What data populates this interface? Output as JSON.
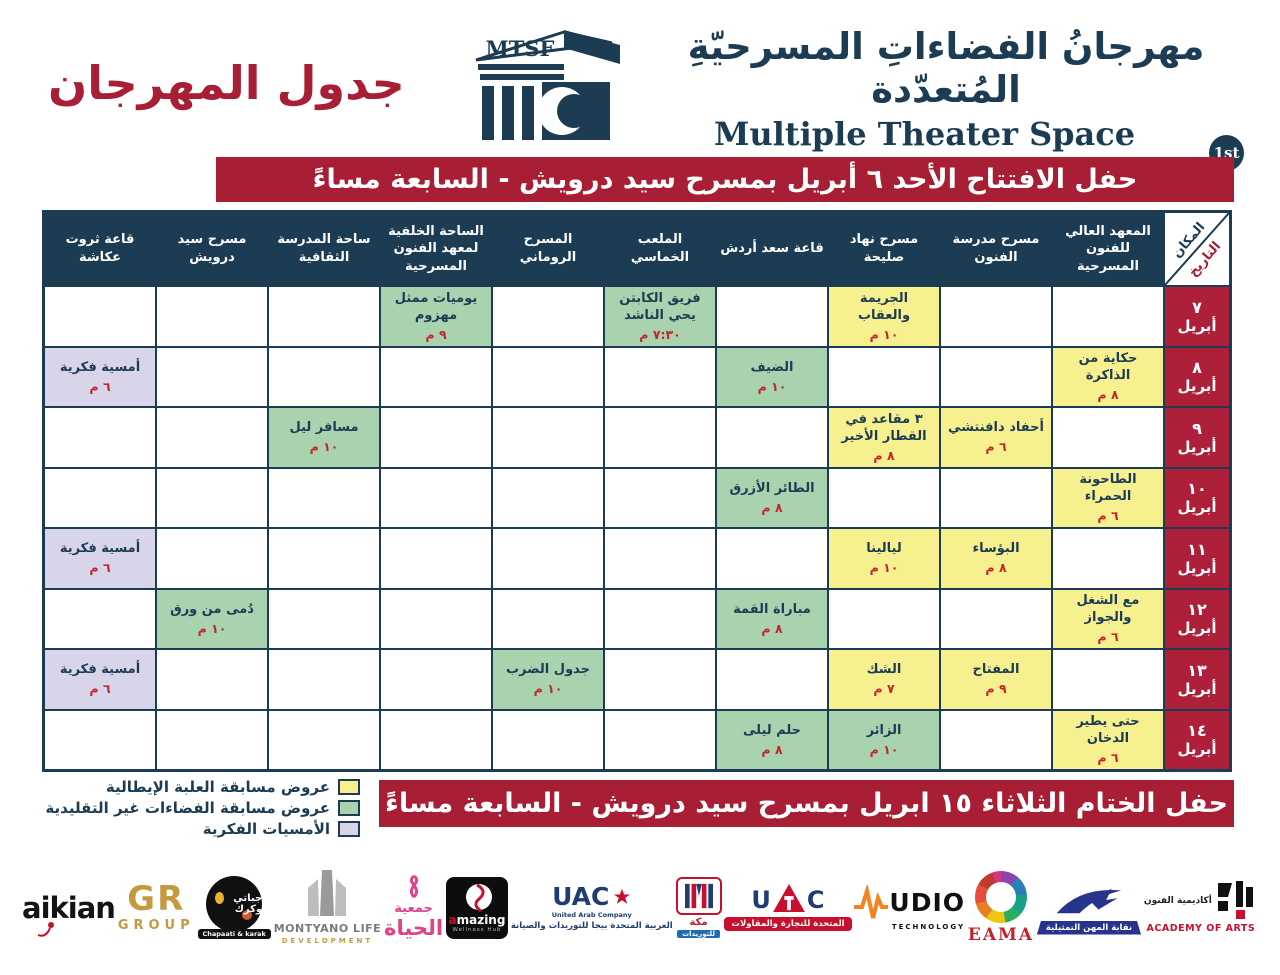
{
  "page_title": "جدول المهرجان",
  "logo": {
    "acronym": "MTSF",
    "festival_name_ar": "مهرجانُ الفضاءاتِ المسرحيّةِ المُتعدّدة",
    "festival_name_en": "Multiple Theater Space Festival",
    "edition": "1st"
  },
  "banners": {
    "opening": "حفل الافتتاح الأحد ٦ أبريل بمسرح سيد درويش - السابعة مساءً",
    "closing": "حفل الختام الثلاثاء ١٥ ابريل بمسرح سيد درويش - السابعة مساءً"
  },
  "colors": {
    "crimson": "#A71E35",
    "navy": "#1C3C54",
    "italian": "#F7F08F",
    "nontrad": "#A9D3AF",
    "evening": "#D8D4E9"
  },
  "schedule": {
    "corner": {
      "place": "المكان",
      "date": "التاريخ"
    },
    "venues": [
      "المعهد العالي للفنون المسرحية",
      "مسرح مدرسة الفنون",
      "مسرح نهاد صليحة",
      "قاعة سعد أردش",
      "الملعب الخماسي",
      "المسرح الروماني",
      "الساحة الخلفية لمعهد الفنون المسرحية",
      "ساحة المدرسة الثقافية",
      "مسرح سيد درويش",
      "قاعة ثروت عكاشة"
    ],
    "rows": [
      {
        "date_day": "٧",
        "date_month": "أبريل",
        "cells": [
          null,
          null,
          {
            "title": "الجريمة والعقاب",
            "time": "١٠ م",
            "type": "italian"
          },
          null,
          {
            "title": "فريق الكابتن يحي الناشد",
            "time": "٧:٣٠ م",
            "type": "nontrad"
          },
          null,
          {
            "title": "يوميات ممثل مهزوم",
            "time": "٩ م",
            "type": "nontrad"
          },
          null,
          null,
          null
        ]
      },
      {
        "date_day": "٨",
        "date_month": "أبريل",
        "cells": [
          {
            "title": "حكاية من الذاكرة",
            "time": "٨ م",
            "type": "italian"
          },
          null,
          null,
          {
            "title": "الضيف",
            "time": "١٠ م",
            "type": "nontrad"
          },
          null,
          null,
          null,
          null,
          null,
          {
            "title": "أمسية فكرية",
            "time": "٦ م",
            "type": "evening"
          }
        ]
      },
      {
        "date_day": "٩",
        "date_month": "أبريل",
        "cells": [
          null,
          {
            "title": "أحفاد دافنتشي",
            "time": "٦ م",
            "type": "italian"
          },
          {
            "title": "٣ مقاعد في القطار الأخير",
            "time": "٨ م",
            "type": "italian"
          },
          null,
          null,
          null,
          null,
          {
            "title": "مسافر ليل",
            "time": "١٠ م",
            "type": "nontrad"
          },
          null,
          null
        ]
      },
      {
        "date_day": "١٠",
        "date_month": "أبريل",
        "cells": [
          {
            "title": "الطاحونة الحمراء",
            "time": "٦ م",
            "type": "italian"
          },
          null,
          null,
          {
            "title": "الطائر الأزرق",
            "time": "٨ م",
            "type": "nontrad"
          },
          null,
          null,
          null,
          null,
          null,
          null
        ]
      },
      {
        "date_day": "١١",
        "date_month": "أبريل",
        "cells": [
          null,
          {
            "title": "البؤساء",
            "time": "٨ م",
            "type": "italian"
          },
          {
            "title": "ليالينا",
            "time": "١٠ م",
            "type": "italian"
          },
          null,
          null,
          null,
          null,
          null,
          null,
          {
            "title": "أمسية فكرية",
            "time": "٦ م",
            "type": "evening"
          }
        ]
      },
      {
        "date_day": "١٢",
        "date_month": "أبريل",
        "cells": [
          {
            "title": "مع الشغل والجواز",
            "time": "٦ م",
            "type": "italian"
          },
          null,
          null,
          {
            "title": "مباراة القمة",
            "time": "٨ م",
            "type": "nontrad"
          },
          null,
          null,
          null,
          null,
          {
            "title": "دُمى من ورق",
            "time": "١٠ م",
            "type": "nontrad"
          },
          null
        ]
      },
      {
        "date_day": "١٣",
        "date_month": "أبريل",
        "cells": [
          null,
          {
            "title": "المفتاح",
            "time": "٩ م",
            "type": "italian"
          },
          {
            "title": "الشك",
            "time": "٧ م",
            "type": "italian"
          },
          null,
          null,
          {
            "title": "جدول الضرب",
            "time": "١٠ م",
            "type": "nontrad"
          },
          null,
          null,
          null,
          {
            "title": "أمسية فكرية",
            "time": "٦ م",
            "type": "evening"
          }
        ]
      },
      {
        "date_day": "١٤",
        "date_month": "أبريل",
        "cells": [
          {
            "title": "حتى يطير الدخان",
            "time": "٦ م",
            "type": "italian"
          },
          null,
          {
            "title": "الزائر",
            "time": "١٠ م",
            "type": "nontrad"
          },
          {
            "title": "حلم ليلى",
            "time": "٨ م",
            "type": "nontrad"
          },
          null,
          null,
          null,
          null,
          null,
          null
        ]
      }
    ]
  },
  "legend": [
    {
      "label": "عروض مسابقة العلبة الإيطالية",
      "type": "italian"
    },
    {
      "label": "عروض مسابقة الفضاءات غير التقليدية",
      "type": "nontrad"
    },
    {
      "label": "الأمسيات الفكرية",
      "type": "evening"
    }
  ],
  "sponsors": [
    {
      "id": "aikian",
      "text": "aikian"
    },
    {
      "id": "gr-group",
      "monogram": "GR",
      "word": "GROUP"
    },
    {
      "id": "chapaati-karak",
      "ar": "جباتي وكرك",
      "en": "Chapaati & karak"
    },
    {
      "id": "montyano-life",
      "name": "MONTYANO LIFE",
      "sub": "DEVELOPMENT"
    },
    {
      "id": "hayah-association",
      "line1": "جمعية",
      "line2": "الحياة"
    },
    {
      "id": "amazing-wellness-hub",
      "name": "amazing",
      "sub": "Wellness Hub"
    },
    {
      "id": "uac",
      "acronym": "UAC",
      "name": "United Arab Company",
      "ar": "العربية المتحدة  بيجا  للتوريدات والصيانة"
    },
    {
      "id": "makkah-supplies",
      "ar1": "مكة",
      "ar2": "للتوريدات"
    },
    {
      "id": "utc",
      "left": "U",
      "right": "C",
      "ar": "المتحدة للتجارة والمقاولات"
    },
    {
      "id": "audio-technology",
      "name": "UDIO",
      "sub": "TECHNOLOGY"
    },
    {
      "id": "eama",
      "name": "EAMA"
    },
    {
      "id": "actors-syndicate",
      "ar": "نقابة المهن التمثيلية"
    },
    {
      "id": "academy-of-arts",
      "ar": "أكاديمية الفنون",
      "en": "ACADEMY OF ARTS"
    }
  ]
}
